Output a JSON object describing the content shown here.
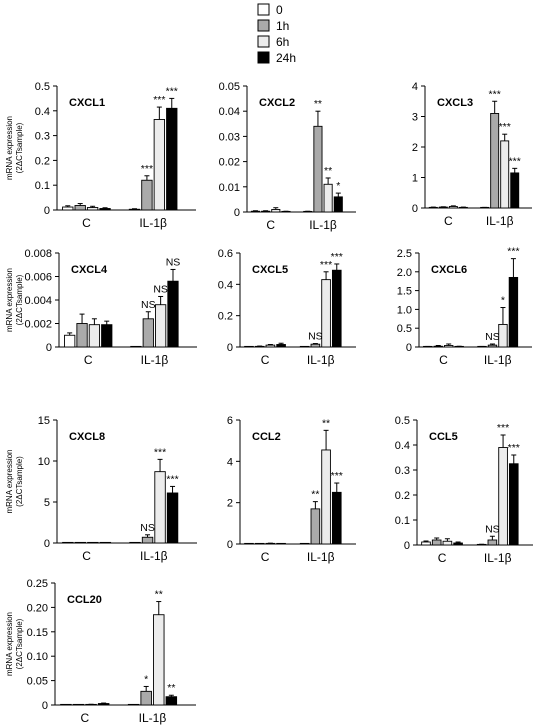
{
  "legend": {
    "entries": [
      {
        "label": "0",
        "color": "#ffffff"
      },
      {
        "label": "1h",
        "color": "#aaaaaa"
      },
      {
        "label": "6h",
        "color": "#ececec"
      },
      {
        "label": "24h",
        "color": "#000000"
      }
    ]
  },
  "ylabel_line1": "mRNA expression",
  "ylabel_line2": "(2ΔCTsample)",
  "chart_data": [
    {
      "type": "bar",
      "title": "CXCL1",
      "categories": [
        "C",
        "IL-1β"
      ],
      "series_names": [
        "0",
        "1h",
        "6h",
        "24h"
      ],
      "values": [
        [
          0.012,
          0.018,
          0.01,
          0.006
        ],
        [
          0.003,
          0.12,
          0.365,
          0.41
        ]
      ],
      "errors": [
        [
          0.005,
          0.008,
          0.005,
          0.003
        ],
        [
          0.002,
          0.018,
          0.05,
          0.04
        ]
      ],
      "annotations": [
        [
          "",
          "",
          "",
          ""
        ],
        [
          "",
          "***",
          "***",
          "***"
        ]
      ],
      "ylim": [
        0,
        0.5
      ],
      "yticks": [
        0,
        0.1,
        0.2,
        0.3,
        0.4,
        0.5
      ],
      "ytick_labels": [
        "0",
        "0.1",
        "0.2",
        "0.3",
        "0.4",
        "0.5"
      ]
    },
    {
      "type": "bar",
      "title": "CXCL2",
      "categories": [
        "C",
        "IL-1β"
      ],
      "series_names": [
        "0",
        "1h",
        "6h",
        "24h"
      ],
      "values": [
        [
          0.0003,
          0.0003,
          0.001,
          0.0002
        ],
        [
          0.0002,
          0.034,
          0.011,
          0.006
        ]
      ],
      "errors": [
        [
          0.0002,
          0.0002,
          0.0007,
          0.0001
        ],
        [
          0.0001,
          0.006,
          0.0025,
          0.0015
        ]
      ],
      "annotations": [
        [
          "",
          "",
          "",
          ""
        ],
        [
          "",
          "**",
          "**",
          "*"
        ]
      ],
      "ylim": [
        0,
        0.05
      ],
      "yticks": [
        0,
        0.01,
        0.02,
        0.03,
        0.04,
        0.05
      ],
      "ytick_labels": [
        "0",
        "0.01",
        "0.02",
        "0.03",
        "0.04",
        "0.05"
      ]
    },
    {
      "type": "bar",
      "title": "CXCL3",
      "categories": [
        "C",
        "IL-1β"
      ],
      "series_names": [
        "0",
        "1h",
        "6h",
        "24h"
      ],
      "values": [
        [
          0.02,
          0.03,
          0.05,
          0.02
        ],
        [
          0.01,
          3.1,
          2.2,
          1.15
        ]
      ],
      "errors": [
        [
          0.01,
          0.01,
          0.02,
          0.01
        ],
        [
          0.01,
          0.4,
          0.22,
          0.15
        ]
      ],
      "annotations": [
        [
          "",
          "",
          "",
          ""
        ],
        [
          "",
          "***",
          "***",
          "***"
        ]
      ],
      "ylim": [
        0,
        4
      ],
      "yticks": [
        0,
        1,
        2,
        3,
        4
      ],
      "ytick_labels": [
        "0",
        "1",
        "2",
        "3",
        "4"
      ]
    },
    {
      "type": "bar",
      "title": "CXCL4",
      "categories": [
        "C",
        "IL-1β"
      ],
      "series_names": [
        "0",
        "1h",
        "6h",
        "24h"
      ],
      "values": [
        [
          0.001,
          0.002,
          0.0019,
          0.0019
        ],
        [
          0,
          0.0024,
          0.0036,
          0.0056
        ]
      ],
      "errors": [
        [
          0.0002,
          0.0008,
          0.0005,
          0.0003
        ],
        [
          0,
          0.0006,
          0.0007,
          0.001
        ]
      ],
      "annotations": [
        [
          "",
          "",
          "",
          ""
        ],
        [
          "",
          "NS",
          "NS",
          "NS"
        ]
      ],
      "ylim": [
        0,
        0.008
      ],
      "yticks": [
        0,
        0.002,
        0.004,
        0.006,
        0.008
      ],
      "ytick_labels": [
        "0",
        "0.002",
        "0.004",
        "0.006",
        "0.008"
      ]
    },
    {
      "type": "bar",
      "title": "CXCL5",
      "categories": [
        "C",
        "IL-1β"
      ],
      "series_names": [
        "0",
        "1h",
        "6h",
        "24h"
      ],
      "values": [
        [
          0.002,
          0.004,
          0.012,
          0.016
        ],
        [
          0.002,
          0.018,
          0.43,
          0.49
        ]
      ],
      "errors": [
        [
          0.001,
          0.002,
          0.004,
          0.008
        ],
        [
          0.001,
          0.004,
          0.05,
          0.04
        ]
      ],
      "annotations": [
        [
          "",
          "",
          "",
          ""
        ],
        [
          "",
          "NS",
          "***",
          "***"
        ]
      ],
      "ylim": [
        0,
        0.6
      ],
      "yticks": [
        0,
        0.2,
        0.4,
        0.6
      ],
      "ytick_labels": [
        "0",
        "0.2",
        "0.4",
        "0.6"
      ]
    },
    {
      "type": "bar",
      "title": "CXCL6",
      "categories": [
        "C",
        "IL-1β"
      ],
      "series_names": [
        "0",
        "1h",
        "6h",
        "24h"
      ],
      "values": [
        [
          0.01,
          0.02,
          0.04,
          0.01
        ],
        [
          0.01,
          0.05,
          0.6,
          1.85
        ]
      ],
      "errors": [
        [
          0.005,
          0.02,
          0.04,
          0.01
        ],
        [
          0.005,
          0.03,
          0.45,
          0.5
        ]
      ],
      "annotations": [
        [
          "",
          "",
          "",
          ""
        ],
        [
          "",
          "NS",
          "*",
          "***"
        ]
      ],
      "ylim": [
        0,
        2.5
      ],
      "yticks": [
        0,
        0.5,
        1,
        1.5,
        2,
        2.5
      ],
      "ytick_labels": [
        "0",
        "0.5",
        "1.0",
        "1.5",
        "2.0",
        "2.5"
      ]
    },
    {
      "type": "bar",
      "title": "CXCL8",
      "categories": [
        "C",
        "IL-1β"
      ],
      "series_names": [
        "0",
        "1h",
        "6h",
        "24h"
      ],
      "values": [
        [
          0.02,
          0.02,
          0.02,
          0.02
        ],
        [
          0.02,
          0.7,
          8.7,
          6.1
        ]
      ],
      "errors": [
        [
          0.01,
          0.01,
          0.01,
          0.01
        ],
        [
          0.01,
          0.3,
          1.5,
          0.8
        ]
      ],
      "annotations": [
        [
          "",
          "",
          "",
          ""
        ],
        [
          "",
          "NS",
          "***",
          "***"
        ]
      ],
      "ylim": [
        0,
        15
      ],
      "yticks": [
        0,
        5,
        10,
        15
      ],
      "ytick_labels": [
        "0",
        "5",
        "10",
        "15"
      ]
    },
    {
      "type": "bar",
      "title": "CCL2",
      "categories": [
        "C",
        "IL-1β"
      ],
      "series_names": [
        "0",
        "1h",
        "6h",
        "24h"
      ],
      "values": [
        [
          0.01,
          0.01,
          0.03,
          0.01
        ],
        [
          0.01,
          1.7,
          4.55,
          2.5
        ]
      ],
      "errors": [
        [
          0.005,
          0.005,
          0.01,
          0.005
        ],
        [
          0.005,
          0.35,
          0.95,
          0.45
        ]
      ],
      "annotations": [
        [
          "",
          "",
          "",
          ""
        ],
        [
          "",
          "**",
          "**",
          "***"
        ]
      ],
      "ylim": [
        0,
        6
      ],
      "yticks": [
        0,
        2,
        4,
        6
      ],
      "ytick_labels": [
        "0",
        "2",
        "4",
        "6"
      ]
    },
    {
      "type": "bar",
      "title": "CCL5",
      "categories": [
        "C",
        "IL-1β"
      ],
      "series_names": [
        "0",
        "1h",
        "6h",
        "24h"
      ],
      "values": [
        [
          0.012,
          0.02,
          0.015,
          0.008
        ],
        [
          0.002,
          0.02,
          0.39,
          0.325
        ]
      ],
      "errors": [
        [
          0.004,
          0.008,
          0.01,
          0.004
        ],
        [
          0.001,
          0.015,
          0.05,
          0.035
        ]
      ],
      "annotations": [
        [
          "",
          "",
          "",
          ""
        ],
        [
          "",
          "NS",
          "***",
          "***"
        ]
      ],
      "ylim": [
        0,
        0.5
      ],
      "yticks": [
        0,
        0.1,
        0.2,
        0.3,
        0.4,
        0.5
      ],
      "ytick_labels": [
        "0",
        "0.1",
        "0.2",
        "0.3",
        "0.4",
        "0.5"
      ]
    },
    {
      "type": "bar",
      "title": "CCL20",
      "categories": [
        "C",
        "IL-1β"
      ],
      "series_names": [
        "0",
        "1h",
        "6h",
        "24h"
      ],
      "values": [
        [
          0.0005,
          0.0005,
          0.001,
          0.003
        ],
        [
          0.0005,
          0.028,
          0.185,
          0.017
        ]
      ],
      "errors": [
        [
          0.0003,
          0.0003,
          0.0005,
          0.001
        ],
        [
          0.0003,
          0.01,
          0.027,
          0.003
        ]
      ],
      "annotations": [
        [
          "",
          "",
          "",
          ""
        ],
        [
          "",
          "*",
          "**",
          "**"
        ]
      ],
      "ylim": [
        0,
        0.25
      ],
      "yticks": [
        0,
        0.05,
        0.1,
        0.15,
        0.2,
        0.25
      ],
      "ytick_labels": [
        "0",
        "0.05",
        "0.10",
        "0.15",
        "0.20",
        "0.25"
      ]
    }
  ]
}
